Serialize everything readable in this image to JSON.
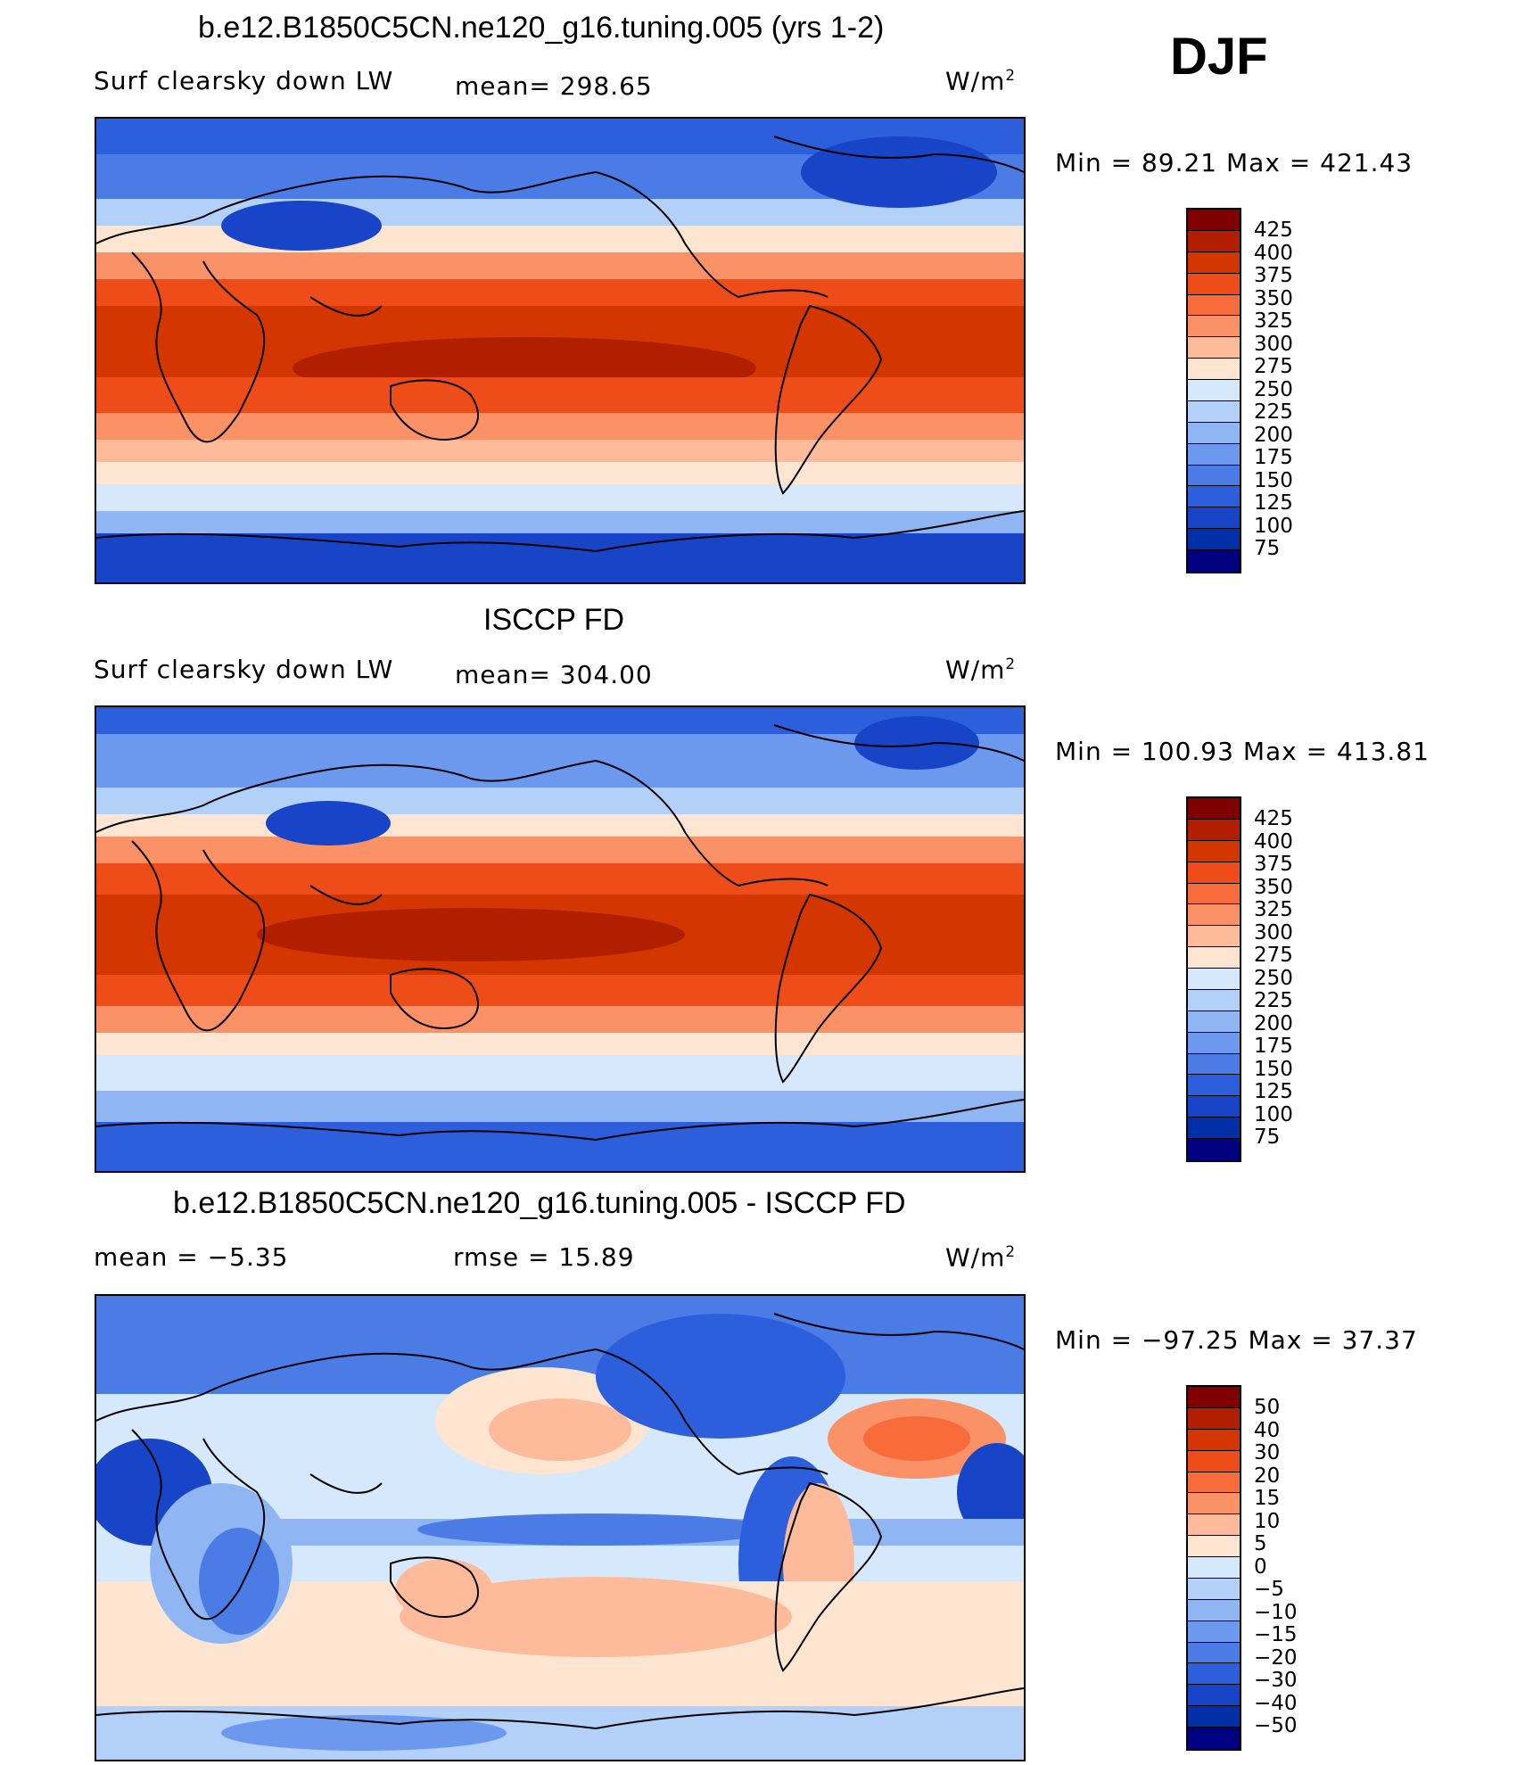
{
  "season": "DJF",
  "panels": [
    {
      "title": "b.e12.B1850C5CN.ne120_g16.tuning.005 (yrs 1-2)",
      "left_label": "Surf clearsky down LW",
      "stat1": "mean= 298.65",
      "stat2": "",
      "units_base": "W/m",
      "units_exp": "2",
      "minmax": "Min =   89.21 Max = 421.43",
      "colorbar_labels": [
        "425",
        "400",
        "375",
        "350",
        "325",
        "300",
        "275",
        "250",
        "225",
        "200",
        "175",
        "150",
        "125",
        "100",
        "75"
      ],
      "colors": [
        "#800000",
        "#b21e00",
        "#d43600",
        "#ee4c18",
        "#f86b3a",
        "#fb9166",
        "#fdbb9b",
        "#fde5d2",
        "#d6e8fb",
        "#b2d0f8",
        "#8fb5f3",
        "#6c99ee",
        "#4b7ce6",
        "#2d5fdc",
        "#1844c8",
        "#002fa8",
        "#000080"
      ]
    },
    {
      "title": "ISCCP FD",
      "left_label": "Surf clearsky down LW",
      "stat1": "mean= 304.00",
      "stat2": "",
      "units_base": "W/m",
      "units_exp": "2",
      "minmax": "Min = 100.93 Max = 413.81",
      "colorbar_labels": [
        "425",
        "400",
        "375",
        "350",
        "325",
        "300",
        "275",
        "250",
        "225",
        "200",
        "175",
        "150",
        "125",
        "100",
        "75"
      ],
      "colors": [
        "#800000",
        "#b21e00",
        "#d43600",
        "#ee4c18",
        "#f86b3a",
        "#fb9166",
        "#fdbb9b",
        "#fde5d2",
        "#d6e8fb",
        "#b2d0f8",
        "#8fb5f3",
        "#6c99ee",
        "#4b7ce6",
        "#2d5fdc",
        "#1844c8",
        "#002fa8",
        "#000080"
      ]
    },
    {
      "title": "b.e12.B1850C5CN.ne120_g16.tuning.005 - ISCCP FD",
      "left_label": "mean =   −5.35",
      "stat1": "rmse =   15.89",
      "stat2": "",
      "units_base": "W/m",
      "units_exp": "2",
      "minmax": "Min = −97.25 Max =   37.37",
      "colorbar_labels": [
        "50",
        "40",
        "30",
        "20",
        "15",
        "10",
        "5",
        "0",
        "−5",
        "−10",
        "−15",
        "−20",
        "−30",
        "−40",
        "−50"
      ],
      "colors": [
        "#800000",
        "#b21e00",
        "#d43600",
        "#ee4c18",
        "#f86b3a",
        "#fb9166",
        "#fdbb9b",
        "#fde5d2",
        "#d6e8fb",
        "#b2d0f8",
        "#8fb5f3",
        "#6c99ee",
        "#4b7ce6",
        "#2d5fdc",
        "#1844c8",
        "#002fa8",
        "#000080"
      ]
    }
  ]
}
